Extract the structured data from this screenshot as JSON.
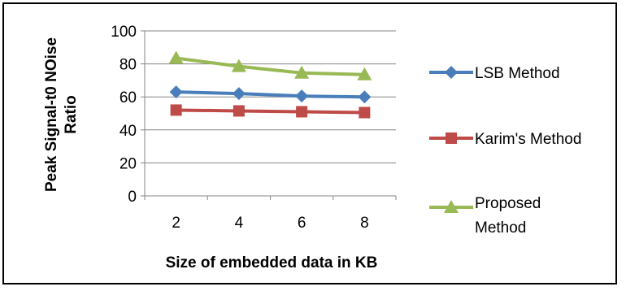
{
  "chart_data": {
    "type": "line",
    "categories": [
      "2",
      "4",
      "6",
      "8"
    ],
    "series": [
      {
        "name": "LSB Method",
        "values": [
          63,
          62,
          60.5,
          60
        ],
        "color": "#4a7ebb",
        "marker": "diamond"
      },
      {
        "name": "Karim's Method",
        "values": [
          52,
          51.5,
          51,
          50.5
        ],
        "color": "#be4b48",
        "marker": "square"
      },
      {
        "name": "Proposed Method",
        "values": [
          83.5,
          78.5,
          74.5,
          73.5
        ],
        "color": "#98b954",
        "marker": "triangle"
      }
    ],
    "title": "",
    "xlabel": "Size of embedded data in KB",
    "ylabel": "Peak Signal-t0 NOise Ratio",
    "ylim": [
      0,
      100
    ],
    "yticks": [
      0,
      20,
      40,
      60,
      80,
      100
    ],
    "grid": "horizontal",
    "legend_position": "right"
  }
}
